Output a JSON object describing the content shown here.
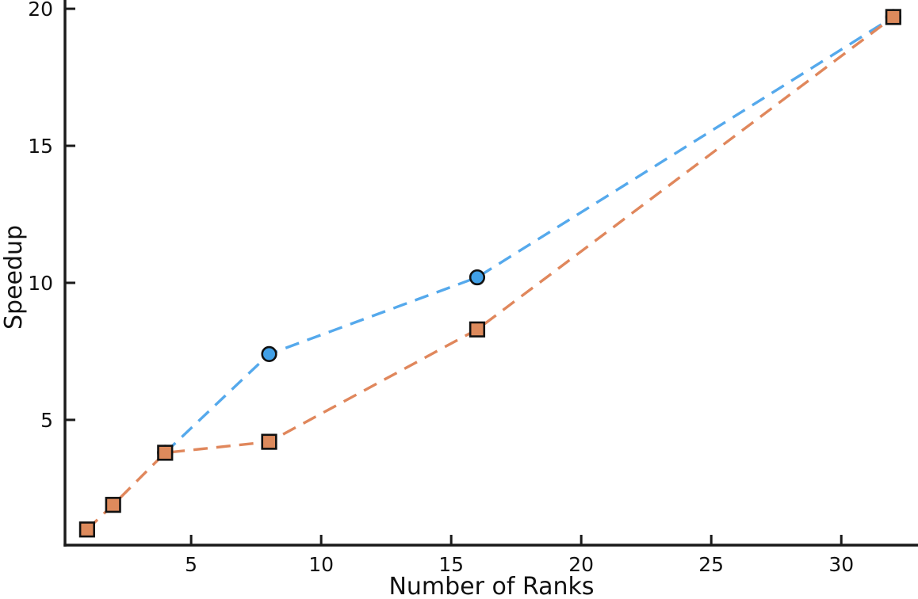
{
  "chart_data": {
    "type": "line",
    "title": "",
    "xlabel": "Number of Ranks",
    "ylabel": "Speedup",
    "xlim": [
      0.15,
      32.95
    ],
    "ylim": [
      0.43,
      20.32
    ],
    "xticks": [
      5,
      10,
      15,
      20,
      25,
      30
    ],
    "yticks": [
      5,
      10,
      15,
      20
    ],
    "grid": false,
    "legend_position": "none",
    "background_color": "#ffffff",
    "axis_color": "#1a1a1a",
    "series": [
      {
        "name": "series-1-circles",
        "marker": "circle",
        "line_style": "dashed",
        "line_color": "#55A9EC",
        "marker_fill": "#41A0E7",
        "marker_edge": "#111111",
        "x": [
          4,
          8,
          16,
          32
        ],
        "y": [
          3.8,
          7.4,
          10.2,
          19.7
        ]
      },
      {
        "name": "series-2-squares",
        "marker": "square",
        "line_style": "dashed",
        "line_color": "#E0875C",
        "marker_fill": "#DD8A5C",
        "marker_edge": "#111111",
        "x": [
          1,
          2,
          4,
          8,
          16,
          32
        ],
        "y": [
          1.0,
          1.9,
          3.8,
          4.2,
          8.3,
          19.7
        ]
      }
    ]
  }
}
